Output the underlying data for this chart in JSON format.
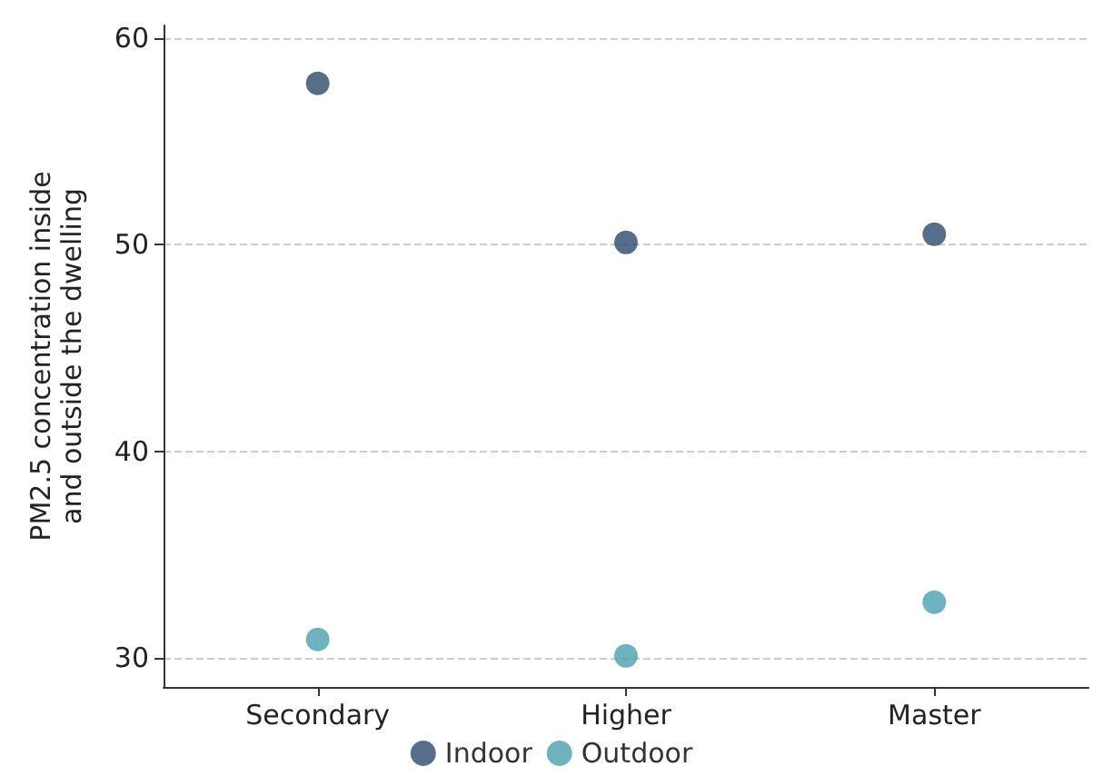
{
  "chart_data": {
    "type": "scatter",
    "ylabel": "PM2.5 concentration inside\nand outside the dwelling",
    "categories": [
      "Secondary",
      "Higher",
      "Master"
    ],
    "series": [
      {
        "name": "Indoor",
        "color": "#2d4a6e",
        "values": [
          57.8,
          50.1,
          50.5
        ]
      },
      {
        "name": "Outdoor",
        "color": "#4a9fb0",
        "values": [
          30.9,
          30.1,
          32.7
        ]
      }
    ],
    "ylim": [
      28.6,
      60.6
    ],
    "yticks": [
      30,
      40,
      50,
      60
    ],
    "grid": "y",
    "legend": "bottom",
    "marker": "circle"
  }
}
